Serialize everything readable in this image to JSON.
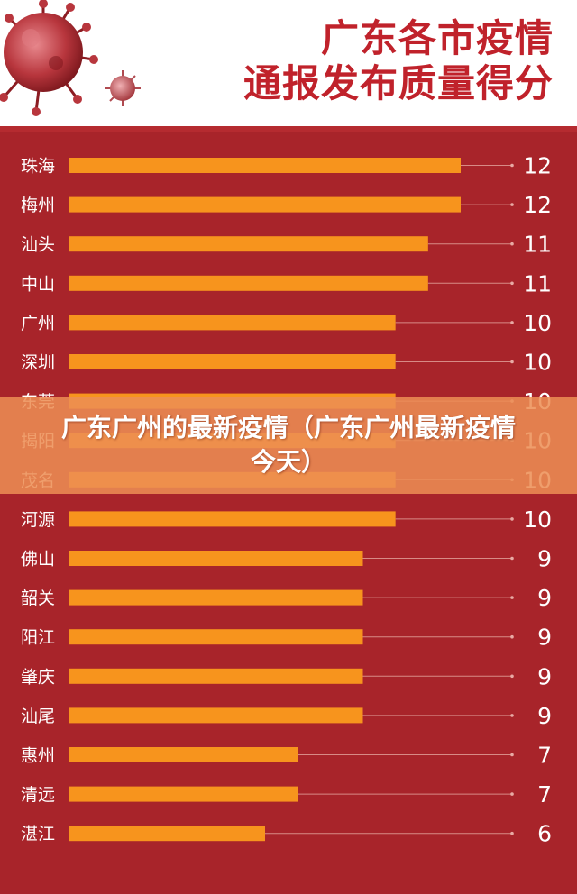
{
  "header": {
    "title_line1": "广东各市疫情",
    "title_line2": "通报发布质量得分"
  },
  "banner": {
    "text": "广东广州的最新疫情（广东广州最新疫情今天）"
  },
  "colors": {
    "background": "#a8242a",
    "bar": "#f7941d",
    "title": "#c0222b",
    "text": "#ffffff"
  },
  "chart_data": {
    "type": "bar",
    "orientation": "horizontal",
    "categories": [
      "珠海",
      "梅州",
      "汕头",
      "中山",
      "广州",
      "深圳",
      "东莞",
      "揭阳",
      "茂名",
      "河源",
      "佛山",
      "韶关",
      "阳江",
      "肇庆",
      "汕尾",
      "惠州",
      "清远",
      "湛江"
    ],
    "values": [
      12,
      12,
      11,
      11,
      10,
      10,
      10,
      10,
      10,
      10,
      9,
      9,
      9,
      9,
      9,
      7,
      7,
      6
    ],
    "xlim": [
      0,
      12
    ],
    "grid": false,
    "legend": "none",
    "data_labels": true
  }
}
